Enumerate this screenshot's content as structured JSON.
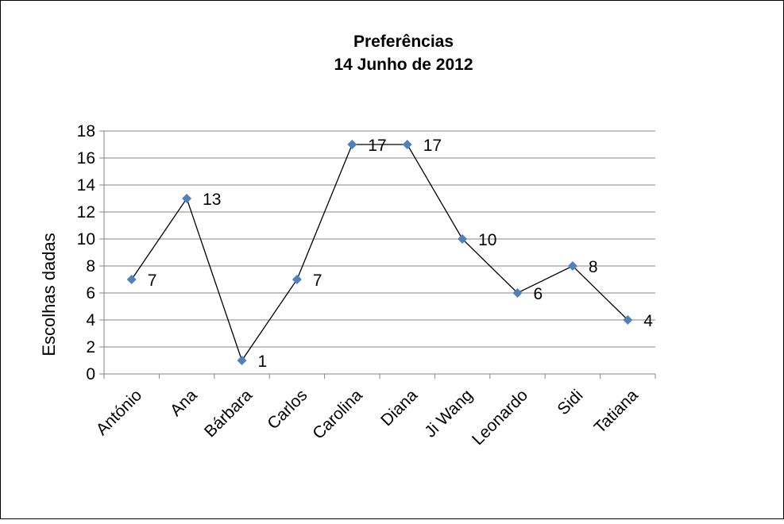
{
  "chart_data": {
    "type": "line",
    "title": [
      "Preferências",
      "14 Junho de 2012"
    ],
    "xlabel": "",
    "ylabel": "Escolhas dadas",
    "categories": [
      "António",
      "Ana",
      "Bárbara",
      "Carlos",
      "Carolina",
      "Diana",
      "Ji Wang",
      "Leonardo",
      "Sidi",
      "Tatiana"
    ],
    "series": [
      {
        "values": [
          7,
          13,
          1,
          7,
          17,
          17,
          10,
          6,
          8,
          4
        ]
      }
    ],
    "ylim": [
      0,
      18
    ],
    "yticks": [
      0,
      2,
      4,
      6,
      8,
      10,
      12,
      14,
      16,
      18
    ],
    "grid": true,
    "legend": "none",
    "data_labels": true,
    "colors": {
      "marker": "#4F81BD",
      "line": "#000000",
      "grid": "#868686"
    }
  }
}
